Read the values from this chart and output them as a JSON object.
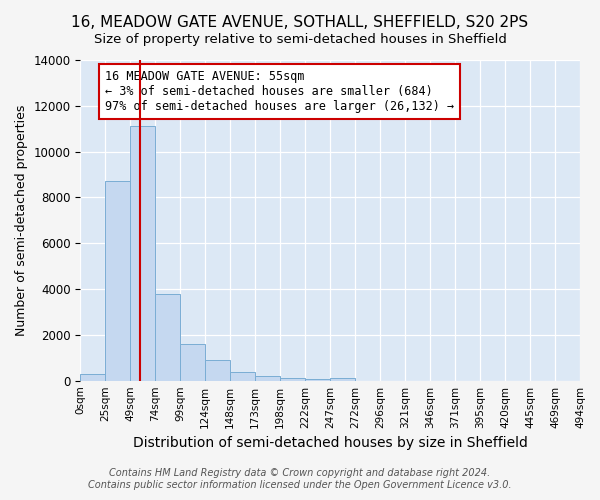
{
  "title": "16, MEADOW GATE AVENUE, SOTHALL, SHEFFIELD, S20 2PS",
  "subtitle": "Size of property relative to semi-detached houses in Sheffield",
  "xlabel": "Distribution of semi-detached houses by size in Sheffield",
  "ylabel": "Number of semi-detached properties",
  "footnote": "Contains HM Land Registry data © Crown copyright and database right 2024.\nContains public sector information licensed under the Open Government Licence v3.0.",
  "bin_labels": [
    "0sqm",
    "25sqm",
    "49sqm",
    "74sqm",
    "99sqm",
    "124sqm",
    "148sqm",
    "173sqm",
    "198sqm",
    "222sqm",
    "247sqm",
    "272sqm",
    "296sqm",
    "321sqm",
    "346sqm",
    "371sqm",
    "395sqm",
    "420sqm",
    "445sqm",
    "469sqm",
    "494sqm"
  ],
  "counts": [
    300,
    8700,
    11100,
    3800,
    1600,
    900,
    370,
    200,
    130,
    70,
    130,
    0,
    0,
    0,
    0,
    0,
    0,
    0,
    0,
    0
  ],
  "bar_color": "#c5d8f0",
  "bar_edge_color": "#7aadd4",
  "property_line_x": 2.4,
  "property_line_color": "#cc0000",
  "annotation_text": "16 MEADOW GATE AVENUE: 55sqm\n← 3% of semi-detached houses are smaller (684)\n97% of semi-detached houses are larger (26,132) →",
  "annotation_box_color": "#ffffff",
  "annotation_box_edge_color": "#cc0000",
  "ylim": [
    0,
    14000
  ],
  "xlim": [
    0,
    20
  ],
  "fig_facecolor": "#f5f5f5",
  "plot_bg_color": "#dce8f5",
  "title_fontsize": 11,
  "subtitle_fontsize": 9.5,
  "annotation_fontsize": 8.5,
  "ylabel_fontsize": 9,
  "xlabel_fontsize": 10,
  "footnote_fontsize": 7
}
